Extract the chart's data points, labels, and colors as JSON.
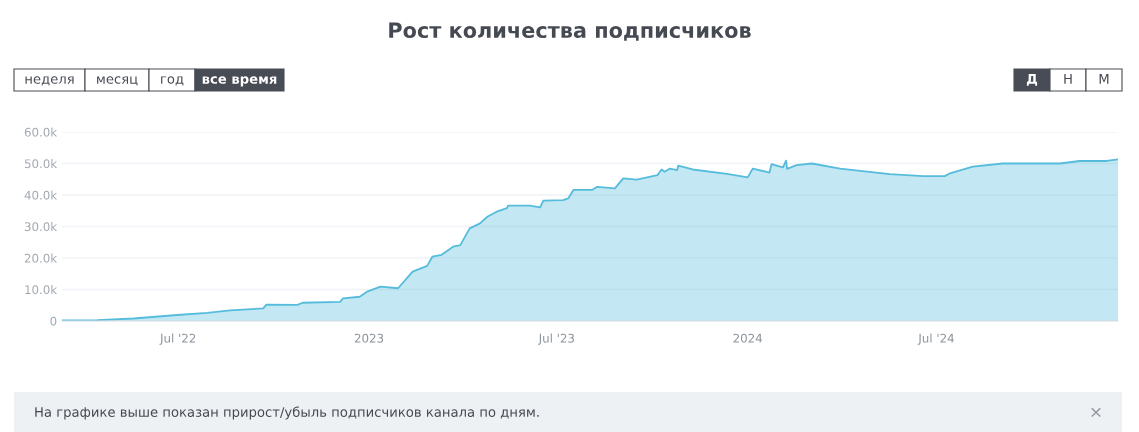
{
  "chart_data": {
    "type": "area",
    "title": "Рост количества подписчиков",
    "x": [
      "2022-03-11",
      "2022-04-14",
      "2022-05-19",
      "2022-06-30",
      "2022-07-29",
      "2022-08-20",
      "2022-09-21",
      "2022-09-24",
      "2022-10-24",
      "2022-10-29",
      "2022-12-04",
      "2022-12-07",
      "2022-12-23",
      "2022-12-30",
      "2023-01-12",
      "2023-01-29",
      "2023-02-12",
      "2023-02-26",
      "2023-03-03",
      "2023-03-12",
      "2023-03-23",
      "2023-03-30",
      "2023-04-08",
      "2023-04-18",
      "2023-04-25",
      "2023-05-04",
      "2023-05-14",
      "2023-05-15",
      "2023-06-05",
      "2023-06-15",
      "2023-06-18",
      "2023-07-07",
      "2023-07-12",
      "2023-07-17",
      "2023-08-04",
      "2023-08-09",
      "2023-08-26",
      "2023-09-03",
      "2023-09-16",
      "2023-10-06",
      "2023-10-10",
      "2023-10-13",
      "2023-10-18",
      "2023-10-25",
      "2023-10-26",
      "2023-11-09",
      "2023-12-12",
      "2024-01-01",
      "2024-01-06",
      "2024-01-22",
      "2024-01-24",
      "2024-02-04",
      "2024-02-07",
      "2024-02-08",
      "2024-02-17",
      "2024-03-03",
      "2024-03-30",
      "2024-05-17",
      "2024-06-18",
      "2024-07-09",
      "2024-07-14",
      "2024-08-05",
      "2024-09-03",
      "2024-10-28",
      "2024-11-16",
      "2024-12-12",
      "2024-12-23"
    ],
    "series": [
      {
        "color": "#56bcdc",
        "values": [
          200,
          300,
          800,
          1900,
          2600,
          3400,
          4000,
          5200,
          5100,
          5800,
          6100,
          7200,
          7700,
          9300,
          10900,
          10400,
          15700,
          17500,
          20400,
          21000,
          23600,
          24100,
          29400,
          31000,
          33100,
          34700,
          35800,
          36600,
          36600,
          36100,
          38200,
          38400,
          38900,
          41600,
          41600,
          42600,
          42100,
          45300,
          44900,
          46300,
          48100,
          47400,
          48400,
          47900,
          49300,
          48100,
          46700,
          45600,
          48400,
          47100,
          49800,
          48800,
          50900,
          48300,
          49500,
          50000,
          48400,
          46600,
          46000,
          46000,
          46900,
          49000,
          50000,
          50000,
          50800,
          50800,
          51300
        ]
      }
    ],
    "xlim": [
      "2022-03-11",
      "2024-12-23"
    ],
    "xticks": [
      {
        "value": "2022-07-01",
        "label": "Jul '22"
      },
      {
        "value": "2023-01-01",
        "label": "2023"
      },
      {
        "value": "2023-07-01",
        "label": "Jul '23"
      },
      {
        "value": "2024-01-01",
        "label": "2024"
      },
      {
        "value": "2024-07-01",
        "label": "Jul '24"
      }
    ],
    "ylim": [
      0,
      60000
    ],
    "yticks": [
      {
        "value": 0,
        "label": "0"
      },
      {
        "value": 10000,
        "label": "10.0k"
      },
      {
        "value": 20000,
        "label": "20.0k"
      },
      {
        "value": 30000,
        "label": "30.0k"
      },
      {
        "value": 40000,
        "label": "40.0k"
      },
      {
        "value": 50000,
        "label": "50.0k"
      },
      {
        "value": 60000,
        "label": "60.0k"
      }
    ],
    "grid": "y",
    "annotations": [
      "неделя",
      "месяц",
      "год",
      "все время",
      "Д",
      "Н",
      "М",
      "На графике выше показан прирост/убыль подписчиков канала по дням.",
      "×"
    ]
  }
}
